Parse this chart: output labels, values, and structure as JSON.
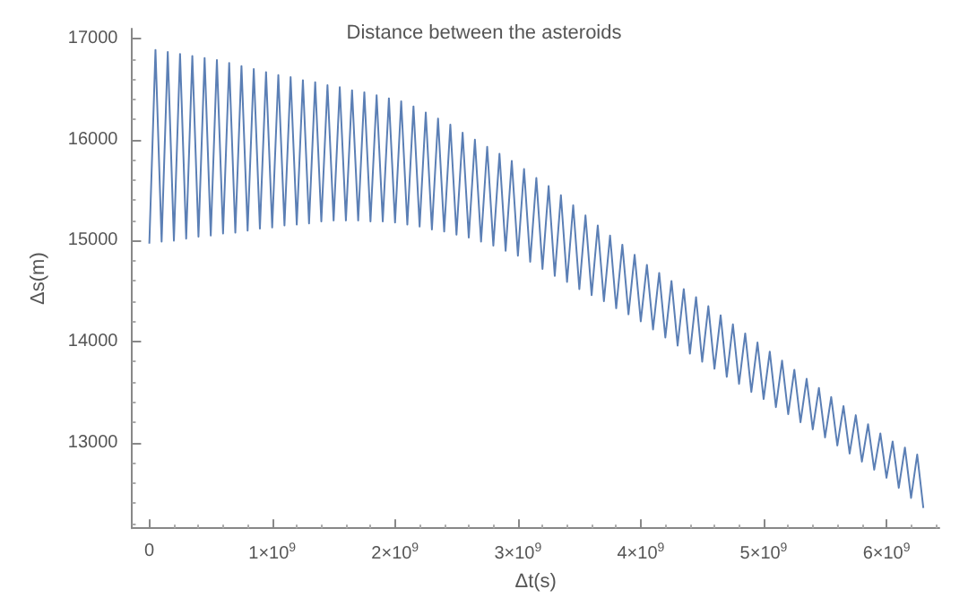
{
  "chart_data": {
    "type": "line",
    "title": "Distance between the asteroids",
    "xlabel": "Δt(s)",
    "ylabel": "Δs(m)",
    "x": [
      0,
      50000000.0,
      100000000.0,
      150000000.0,
      200000000.0,
      250000000.0,
      300000000.0,
      350000000.0,
      400000000.0,
      450000000.0,
      500000000.0,
      550000000.0,
      600000000.0,
      650000000.0,
      700000000.0,
      750000000.0,
      800000000.0,
      850000000.0,
      900000000.0,
      950000000.0,
      1000000000.0,
      1050000000.0,
      1100000000.0,
      1150000000.0,
      1200000000.0,
      1250000000.0,
      1300000000.0,
      1350000000.0,
      1400000000.0,
      1450000000.0,
      1500000000.0,
      1550000000.0,
      1600000000.0,
      1650000000.0,
      1700000000.0,
      1750000000.0,
      1800000000.0,
      1850000000.0,
      1900000000.0,
      1950000000.0,
      2000000000.0,
      2050000000.0,
      2100000000.0,
      2150000000.0,
      2200000000.0,
      2250000000.0,
      2300000000.0,
      2350000000.0,
      2400000000.0,
      2450000000.0,
      2500000000.0,
      2550000000.0,
      2600000000.0,
      2650000000.0,
      2700000000.0,
      2750000000.0,
      2800000000.0,
      2850000000.0,
      2900000000.0,
      2950000000.0,
      3000000000.0,
      3050000000.0,
      3100000000.0,
      3150000000.0,
      3200000000.0,
      3250000000.0,
      3300000000.0,
      3350000000.0,
      3400000000.0,
      3450000000.0,
      3500000000.0,
      3550000000.0,
      3600000000.0,
      3650000000.0,
      3700000000.0,
      3750000000.0,
      3800000000.0,
      3850000000.0,
      3900000000.0,
      3950000000.0,
      4000000000.0,
      4050000000.0,
      4100000000.0,
      4150000000.0,
      4200000000.0,
      4250000000.0,
      4300000000.0,
      4350000000.0,
      4400000000.0,
      4450000000.0,
      4500000000.0,
      4550000000.0,
      4600000000.0,
      4650000000.0,
      4700000000.0,
      4750000000.0,
      4800000000.0,
      4850000000.0,
      4900000000.0,
      4950000000.0,
      5000000000.0,
      5050000000.0,
      5100000000.0,
      5150000000.0,
      5200000000.0,
      5250000000.0,
      5300000000.0,
      5350000000.0,
      5400000000.0,
      5450000000.0,
      5500000000.0,
      5550000000.0,
      5600000000.0,
      5650000000.0,
      5700000000.0,
      5750000000.0,
      5800000000.0,
      5850000000.0,
      5900000000.0,
      5950000000.0,
      6000000000.0,
      6050000000.0,
      6100000000.0,
      6150000000.0,
      6200000000.0,
      6250000000.0,
      6300000000.0
    ],
    "series": [
      {
        "color": "#5b7fb5",
        "values": [
          14970,
          16890,
          14990,
          16870,
          15000,
          16850,
          15020,
          16830,
          15040,
          16810,
          15050,
          16790,
          15070,
          16760,
          15080,
          16730,
          15100,
          16700,
          15120,
          16670,
          15130,
          16640,
          15150,
          16620,
          15160,
          16590,
          15170,
          16570,
          15190,
          16540,
          15200,
          16520,
          15200,
          16490,
          15200,
          16470,
          15190,
          16440,
          15190,
          16410,
          15180,
          16380,
          15160,
          16330,
          15140,
          16270,
          15110,
          16210,
          15090,
          16150,
          15060,
          16070,
          15030,
          16000,
          14990,
          15930,
          14950,
          15860,
          14900,
          15790,
          14850,
          15710,
          14790,
          15620,
          14720,
          15540,
          14650,
          15450,
          14590,
          15350,
          14520,
          15250,
          14460,
          15150,
          14400,
          15050,
          14330,
          14960,
          14270,
          14860,
          14200,
          14760,
          14120,
          14680,
          14040,
          14600,
          13960,
          14520,
          13880,
          14440,
          13800,
          14350,
          13730,
          14260,
          13650,
          14170,
          13580,
          14080,
          13500,
          13990,
          13430,
          13900,
          13350,
          13810,
          13280,
          13720,
          13200,
          13630,
          13130,
          13540,
          13050,
          13450,
          12970,
          13360,
          12890,
          13270,
          12810,
          13180,
          12730,
          13090,
          12650,
          13010,
          12550,
          12950,
          12450,
          12880,
          12350
        ]
      }
    ],
    "xlim": [
      -140000000,
      6430000000
    ],
    "xticks": [
      0,
      {
        "value": 1000000000,
        "label": "1×10$^{9}$"
      },
      {
        "value": 2000000000,
        "label": "2×10$^{9}$"
      },
      {
        "value": 3000000000,
        "label": "3×10$^{9}$"
      },
      {
        "value": 4000000000,
        "label": "4×10$^{9}$"
      },
      {
        "value": 5000000000,
        "label": "5×10$^{9}$"
      },
      {
        "value": 6000000000,
        "label": "6×10$^{9}$"
      }
    ],
    "ylim": [
      12150,
      17100
    ],
    "yticks": [
      13000,
      14000,
      15000,
      16000,
      17000
    ],
    "grid": false,
    "marker": "none",
    "line_style": "solid"
  }
}
